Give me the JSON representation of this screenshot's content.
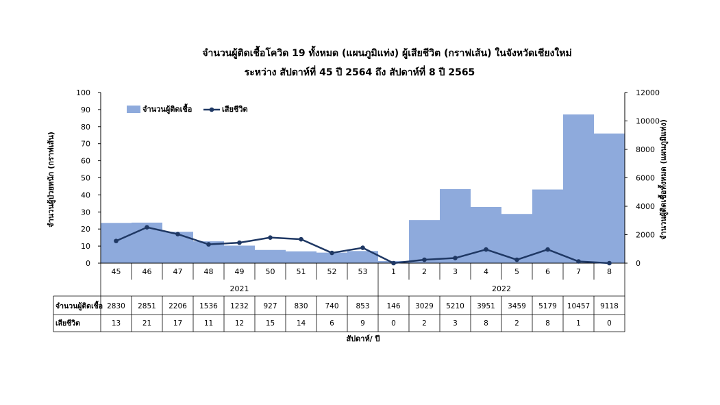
{
  "chart_data": {
    "type": "bar+line",
    "title_line1": "จำนวนผู้ติดเชื้อโควิด 19 ทั้งหมด (แผนภูมิแท่ง) ผู้เสียชีวิต (กราฟเส้น) ในจังหวัดเชียงใหม่",
    "title_line2": "ระหว่าง สัปดาห์ที่ 45 ปี 2564 ถึง สัปดาห์ที่ 8 ปี 2565",
    "xlabel": "สัปดาห์/ ปี",
    "ylabel_left": "จำนวนผู้ป่วยหนัก (กราฟเส้น)",
    "ylabel_right": "จำนวนผู้ติดเชื้อทั้งหมด (แผนภูมิแท่ง)",
    "ylim_left": [
      0,
      100
    ],
    "yticks_left": [
      0,
      10,
      20,
      30,
      40,
      50,
      60,
      70,
      80,
      90,
      100
    ],
    "ylim_right": [
      0,
      12000
    ],
    "yticks_right": [
      0,
      2000,
      4000,
      6000,
      8000,
      10000,
      12000
    ],
    "weeks": [
      "45",
      "46",
      "47",
      "48",
      "49",
      "50",
      "51",
      "52",
      "53",
      "1",
      "2",
      "3",
      "4",
      "5",
      "6",
      "7",
      "8"
    ],
    "years": [
      {
        "label": "2021",
        "count": 9
      },
      {
        "label": "2022",
        "count": 8
      }
    ],
    "series": [
      {
        "name": "จำนวนผู้ติดเชื้อ",
        "kind": "bar",
        "axis": "right",
        "color": "#8eaadc",
        "values": [
          2830,
          2851,
          2206,
          1536,
          1232,
          927,
          830,
          740,
          853,
          146,
          3029,
          5210,
          3951,
          3459,
          5179,
          10457,
          9118
        ]
      },
      {
        "name": "เสียชีวิต",
        "kind": "line",
        "axis": "left",
        "color": "#1f3864",
        "values": [
          13,
          21,
          17,
          11,
          12,
          15,
          14,
          6,
          9,
          0,
          2,
          3,
          8,
          2,
          8,
          1,
          0
        ]
      }
    ],
    "legend_position": "top-left"
  }
}
